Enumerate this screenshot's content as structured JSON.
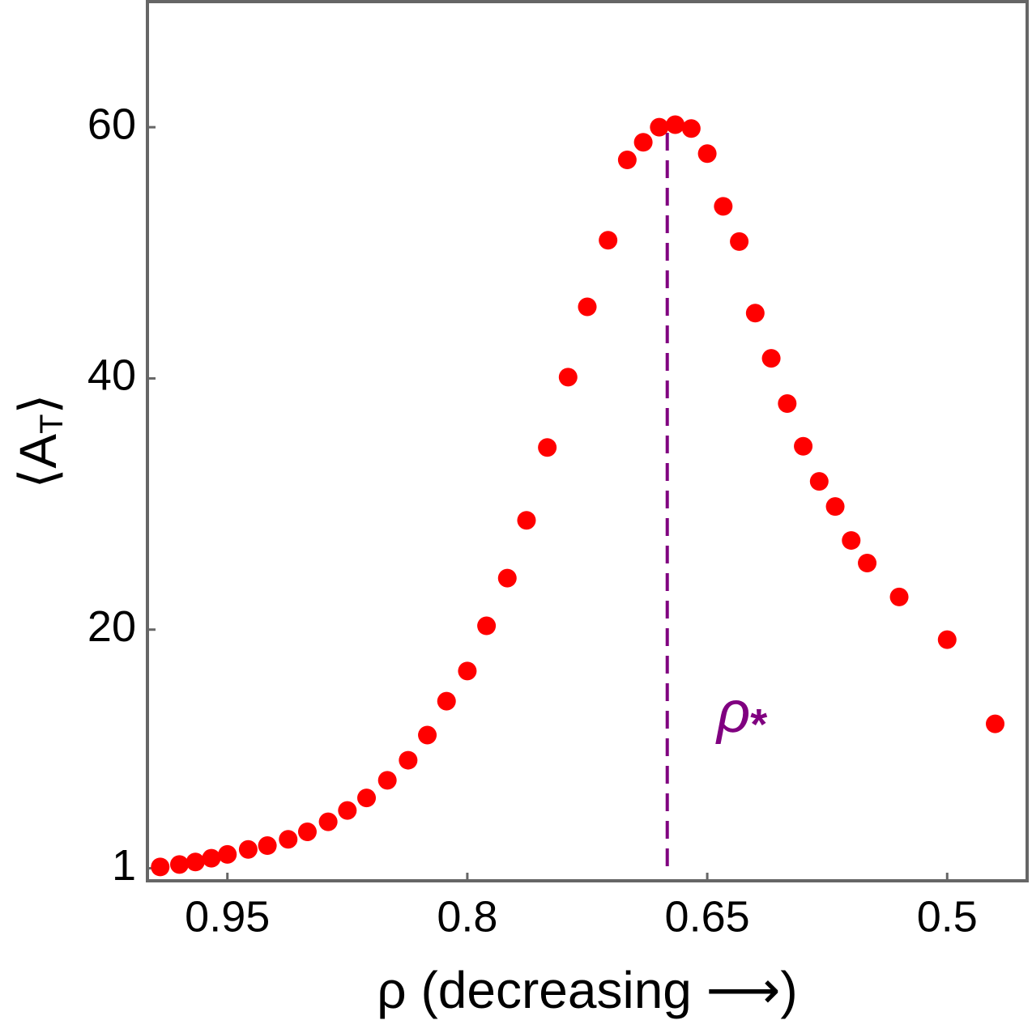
{
  "chart_data": {
    "type": "scatter",
    "xlabel": "ρ (decreasing ⟶)",
    "ylabel": [
      "⟨A",
      "T",
      "⟩"
    ],
    "annotation": [
      "ρ",
      "*"
    ],
    "annotation_color": "#800080",
    "x": [
      0.992,
      0.98,
      0.97,
      0.96,
      0.95,
      0.937,
      0.925,
      0.912,
      0.9,
      0.887,
      0.875,
      0.863,
      0.85,
      0.837,
      0.825,
      0.813,
      0.8,
      0.788,
      0.775,
      0.763,
      0.75,
      0.737,
      0.725,
      0.712,
      0.7,
      0.69,
      0.68,
      0.67,
      0.66,
      0.65,
      0.64,
      0.63,
      0.62,
      0.61,
      0.6,
      0.59,
      0.58,
      0.57,
      0.56,
      0.55,
      0.53,
      0.5,
      0.47
    ],
    "series": [
      {
        "color": "#ff0000",
        "values": [
          1.1,
          1.3,
          1.5,
          1.8,
          2.1,
          2.5,
          2.8,
          3.3,
          3.9,
          4.7,
          5.6,
          6.6,
          8.0,
          9.6,
          11.6,
          14.3,
          16.7,
          20.3,
          24.1,
          28.7,
          34.5,
          40.1,
          45.7,
          51.0,
          57.4,
          58.8,
          60.0,
          60.2,
          59.9,
          57.9,
          53.7,
          50.9,
          45.2,
          41.6,
          38.0,
          34.6,
          31.8,
          29.8,
          27.1,
          25.3,
          22.6,
          19.2,
          12.5
        ]
      }
    ],
    "vline": {
      "x": 0.675,
      "y": 60,
      "color": "#800080",
      "dashed": true
    },
    "xlim": [
      1.0,
      0.45
    ],
    "xticks": [
      0.95,
      0.8,
      0.65,
      0.5
    ],
    "ylim": [
      0,
      70
    ],
    "yticks": [
      1,
      20,
      40,
      60
    ]
  }
}
